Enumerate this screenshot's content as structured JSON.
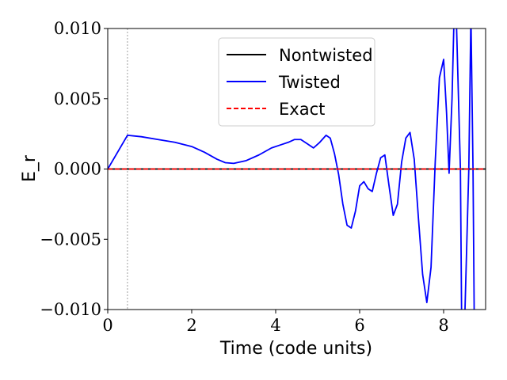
{
  "chart_data": {
    "type": "line",
    "title": "",
    "xlabel": "Time (code units)",
    "ylabel": "E_r",
    "xlim": [
      0,
      9
    ],
    "ylim": [
      -0.01,
      0.01
    ],
    "xticks": [
      0,
      2,
      4,
      6,
      8
    ],
    "xtick_labels": [
      "0",
      "2",
      "4",
      "6",
      "8"
    ],
    "yticks": [
      -0.01,
      -0.005,
      0,
      0.005,
      0.01
    ],
    "ytick_labels": [
      "−0.010",
      "−0.005",
      "0.000",
      "0.005",
      "0.010"
    ],
    "grid": false,
    "legend_position": "top-center",
    "reference_vline_x": 0.47,
    "series": [
      {
        "name": "Nontwisted",
        "color": "#000000",
        "style": "solid",
        "x": [
          0,
          9
        ],
        "y": [
          0,
          0
        ]
      },
      {
        "name": "Twisted",
        "color": "#0000ff",
        "style": "solid",
        "x": [
          0,
          0.47,
          0.8,
          1.2,
          1.6,
          2.0,
          2.3,
          2.6,
          2.8,
          3.0,
          3.3,
          3.6,
          3.9,
          4.1,
          4.3,
          4.45,
          4.6,
          4.75,
          4.9,
          5.05,
          5.2,
          5.3,
          5.4,
          5.5,
          5.6,
          5.7,
          5.8,
          5.9,
          6.0,
          6.1,
          6.2,
          6.3,
          6.4,
          6.5,
          6.6,
          6.7,
          6.8,
          6.9,
          7.0,
          7.1,
          7.2,
          7.3,
          7.4,
          7.5,
          7.6,
          7.7,
          7.8,
          7.9,
          8.0,
          8.07,
          8.13,
          8.2,
          8.25,
          8.3,
          8.4,
          8.43,
          8.5,
          8.6,
          8.65,
          8.7,
          8.73
        ],
        "y": [
          0,
          0.0024,
          0.0023,
          0.0021,
          0.0019,
          0.0016,
          0.0012,
          0.0007,
          0.00045,
          0.0004,
          0.0006,
          0.001,
          0.0015,
          0.0017,
          0.0019,
          0.0021,
          0.0021,
          0.0018,
          0.0015,
          0.0019,
          0.0024,
          0.0022,
          0.0011,
          -0.0004,
          -0.0025,
          -0.004,
          -0.0042,
          -0.003,
          -0.0012,
          -0.0009,
          -0.0014,
          -0.0016,
          -0.0003,
          0.0008,
          0.001,
          -0.0012,
          -0.0033,
          -0.0025,
          0.0005,
          0.0022,
          0.0026,
          0.0007,
          -0.0035,
          -0.0075,
          -0.0095,
          -0.007,
          0.0005,
          0.0065,
          0.0078,
          0.004,
          -0.0003,
          0.005,
          0.011,
          0.011,
          0.0,
          -0.011,
          -0.011,
          0.0,
          0.011,
          0.0,
          -0.011
        ]
      },
      {
        "name": "Exact",
        "color": "#ff0000",
        "style": "dashed",
        "x": [
          0,
          9
        ],
        "y": [
          0,
          0
        ]
      }
    ]
  }
}
